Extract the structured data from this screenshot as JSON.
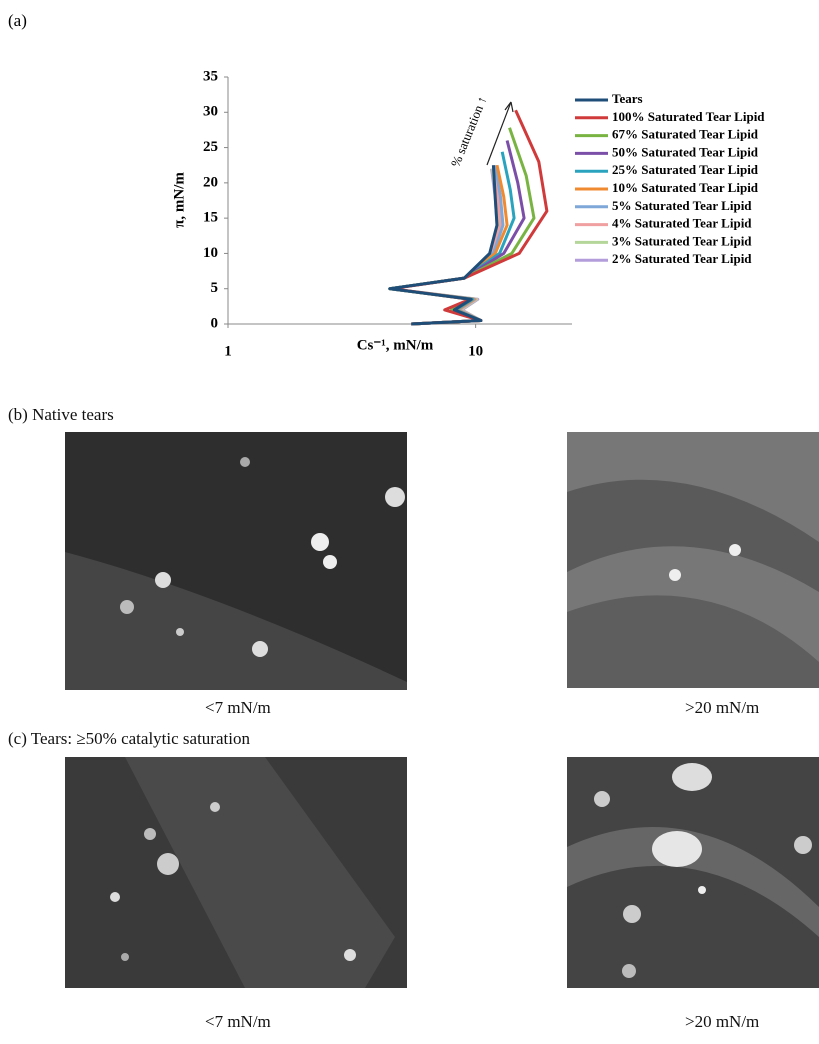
{
  "panel_a": {
    "label": "(a)"
  },
  "chart_data": {
    "type": "line",
    "xlabel": "Cs⁻¹, mN/m",
    "ylabel": "π, mN/m",
    "annotation": "% saturation ↑",
    "xlim": [
      1,
      24.5
    ],
    "xscale": "log",
    "xticks": [
      1,
      10
    ],
    "ylim": [
      0,
      35
    ],
    "yticks": [
      0,
      5,
      10,
      15,
      20,
      25,
      30,
      35
    ],
    "series": [
      {
        "name": "Tears",
        "color": "#1f4e79",
        "x": [
          5.5,
          10.5,
          8.2,
          9.6,
          4.5,
          9,
          11.4,
          12.2,
          12,
          11.8
        ],
        "values": [
          0,
          0.5,
          2,
          3.5,
          5,
          6.5,
          10,
          14,
          18,
          22.5
        ]
      },
      {
        "name": "100% Saturated Tear Lipid",
        "color": "#d03a3a",
        "x": [
          5.5,
          10.5,
          7.5,
          9.5,
          4.6,
          9,
          15,
          19.4,
          18,
          14.5
        ],
        "values": [
          0,
          0.5,
          2,
          3.5,
          5,
          6.5,
          10,
          16,
          23,
          30.3
        ]
      },
      {
        "name": "67% Saturated Tear Lipid",
        "color": "#79b443",
        "x": [
          5.5,
          10.5,
          8,
          9.5,
          4.5,
          9,
          14,
          17.2,
          16,
          13.7
        ],
        "values": [
          0,
          0.5,
          2,
          3.5,
          5,
          6.5,
          10,
          15,
          21,
          27.8
        ]
      },
      {
        "name": "50% Saturated Tear Lipid",
        "color": "#7b4fa8",
        "x": [
          5.5,
          10.5,
          8,
          9.5,
          4.5,
          9,
          13,
          15.7,
          14.8,
          13.4
        ],
        "values": [
          0,
          0.5,
          2,
          3.5,
          5,
          6.5,
          10,
          15,
          20,
          26
        ]
      },
      {
        "name": "25% Saturated Tear Lipid",
        "color": "#2aa3bf",
        "x": [
          5.5,
          10.5,
          8.3,
          9.7,
          4.5,
          9,
          12.5,
          14.3,
          13.8,
          12.8
        ],
        "values": [
          0,
          0.5,
          2,
          3.5,
          5,
          6.5,
          10,
          15,
          19,
          24.4
        ]
      },
      {
        "name": "10% Saturated Tear Lipid",
        "color": "#f08a30",
        "x": [
          5.5,
          10.5,
          8.4,
          9.8,
          4.5,
          9,
          12,
          13.4,
          13,
          12.2
        ],
        "values": [
          0,
          0.5,
          2,
          3.5,
          5,
          6.5,
          10,
          14,
          18,
          22.5
        ]
      },
      {
        "name": "5% Saturated Tear Lipid",
        "color": "#7fa7d8",
        "x": [
          5.5,
          10.5,
          8.5,
          9.9,
          4.5,
          9,
          11.8,
          12.9,
          12.6,
          12
        ],
        "values": [
          0,
          0.5,
          2,
          3.5,
          5,
          6.5,
          10,
          14,
          18,
          22.5
        ]
      },
      {
        "name": "4% Saturated Tear Lipid",
        "color": "#f0a0a0",
        "x": [
          5.5,
          10.5,
          8.6,
          10,
          4.5,
          9,
          11.6,
          12.6,
          12.3,
          11.8
        ],
        "values": [
          0,
          0.5,
          2,
          3.5,
          5,
          6.5,
          10,
          14,
          18,
          22
        ]
      },
      {
        "name": "3% Saturated Tear Lipid",
        "color": "#b5d69a",
        "x": [
          5.5,
          10.5,
          8.7,
          10.1,
          4.5,
          9,
          11.5,
          12.4,
          12.1,
          11.7
        ],
        "values": [
          0,
          0.5,
          2,
          3.5,
          5,
          6.5,
          10,
          14,
          18,
          22
        ]
      },
      {
        "name": "2% Saturated Tear Lipid",
        "color": "#b39ddb",
        "x": [
          5.5,
          10.5,
          8.8,
          10.2,
          4.5,
          9,
          11.4,
          12.2,
          12,
          11.6
        ],
        "values": [
          0,
          0.5,
          2,
          3.5,
          5,
          6.5,
          10,
          14,
          18,
          22
        ]
      }
    ]
  },
  "panel_b": {
    "title": "(b) Native tears",
    "captions": [
      "<7 mN/m",
      ">20 mN/m"
    ]
  },
  "panel_c": {
    "title": "(c) Tears: ≥50% catalytic saturation",
    "captions": [
      "<7 mN/m",
      ">20 mN/m"
    ]
  }
}
